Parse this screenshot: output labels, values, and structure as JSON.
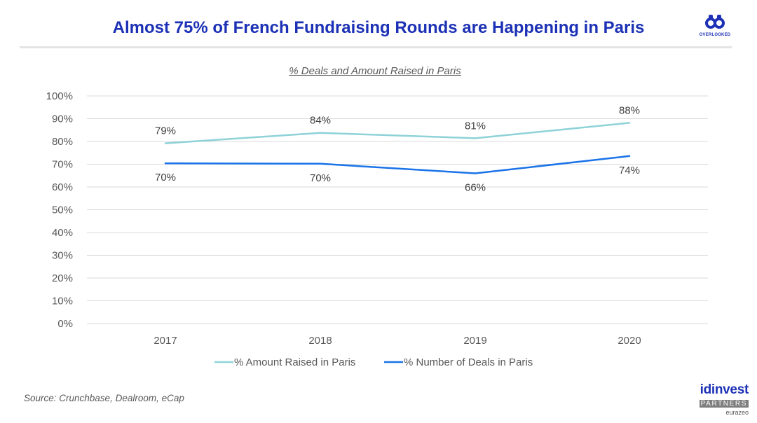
{
  "header": {
    "title": "Almost 75% of French Fundraising Rounds are Happening in Paris",
    "logo_text": "OVERLOOKED"
  },
  "footer": {
    "source": "Source: Crunchbase, Dealroom, eCap",
    "partner_logo": {
      "main": "idinvest",
      "sub": "PARTNERS",
      "tag": "eurazeo"
    }
  },
  "colors": {
    "title": "#1c31b5",
    "series_amount": "#8ed2d8",
    "series_deals": "#1a73e8",
    "grid": "#d9d9d9"
  },
  "chart_data": {
    "type": "line",
    "title": "% Deals and Amount Raised in Paris",
    "categories": [
      "2017",
      "2018",
      "2019",
      "2020"
    ],
    "y_ticks": [
      "0%",
      "10%",
      "20%",
      "30%",
      "40%",
      "50%",
      "60%",
      "70%",
      "80%",
      "90%",
      "100%"
    ],
    "ylim": [
      0,
      100
    ],
    "grid": true,
    "legend_position": "bottom",
    "series": [
      {
        "name": "% Amount Raised in Paris",
        "values": [
          79.2,
          83.8,
          81.4,
          88.2
        ],
        "labels": [
          "79%",
          "84%",
          "81%",
          "88%"
        ],
        "label_position": "above"
      },
      {
        "name": "% Number of Deals in Paris",
        "values": [
          70.4,
          70.2,
          66.0,
          73.6
        ],
        "labels": [
          "70%",
          "70%",
          "66%",
          "74%"
        ],
        "label_position": "below"
      }
    ]
  }
}
